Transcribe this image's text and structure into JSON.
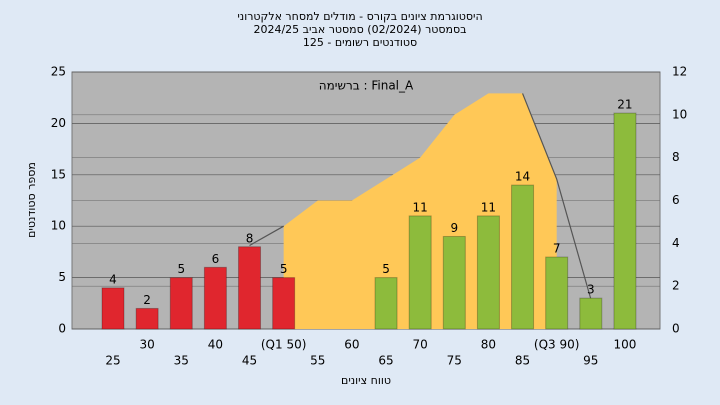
{
  "chart_data": {
    "type": "bar",
    "title": "היסטוגרמת ציונים בקורס - מודלים למסחר אלקטרוני",
    "subtitle": "בסמסטר  (02/2024)  סמסטר אביב 2024/25",
    "subtitle2": "סטודנטים רשומים - 125",
    "annotation": "ברשימה : Final_A",
    "y_label": "מספר סטודנטים",
    "x_label": "טווח ציונים",
    "categories": [
      "25",
      "30",
      "35",
      "40",
      "45",
      "(Q1 50)",
      "55",
      "60",
      "65",
      "70",
      "75",
      "80",
      "85",
      "(Q3 90)",
      "95",
      "100"
    ],
    "values": [
      4,
      2,
      5,
      6,
      8,
      5,
      null,
      null,
      5,
      11,
      9,
      11,
      14,
      7,
      3,
      21
    ],
    "colors": [
      "#e0262e",
      "#e0262e",
      "#e0262e",
      "#e0262e",
      "#e0262e",
      "#e0262e",
      "#8dbb3c",
      "#8dbb3c",
      "#8dbb3c",
      "#8dbb3c",
      "#8dbb3c",
      "#8dbb3c",
      "#8dbb3c",
      "#8dbb3c",
      "#8dbb3c",
      "#8dbb3c"
    ],
    "ylim": [
      0,
      25
    ],
    "yticks": [
      0,
      5,
      10,
      15,
      20,
      25
    ],
    "y2lim": [
      0,
      12
    ],
    "y2ticks": [
      0,
      2,
      4,
      6,
      8,
      10,
      12
    ],
    "series": [
      {
        "type": "area",
        "axis": "y2",
        "color": "#ffc857",
        "values": [
          null,
          null,
          null,
          null,
          null,
          4.8,
          6,
          6,
          7,
          8,
          10,
          11,
          11,
          7,
          null,
          null
        ]
      },
      {
        "type": "line",
        "axis": "y2",
        "color": "#555555",
        "values": [
          null,
          null,
          null,
          null,
          3.9,
          4.8,
          null,
          null,
          null,
          null,
          null,
          null,
          11,
          7,
          1.4,
          null
        ]
      }
    ],
    "grid": true
  }
}
